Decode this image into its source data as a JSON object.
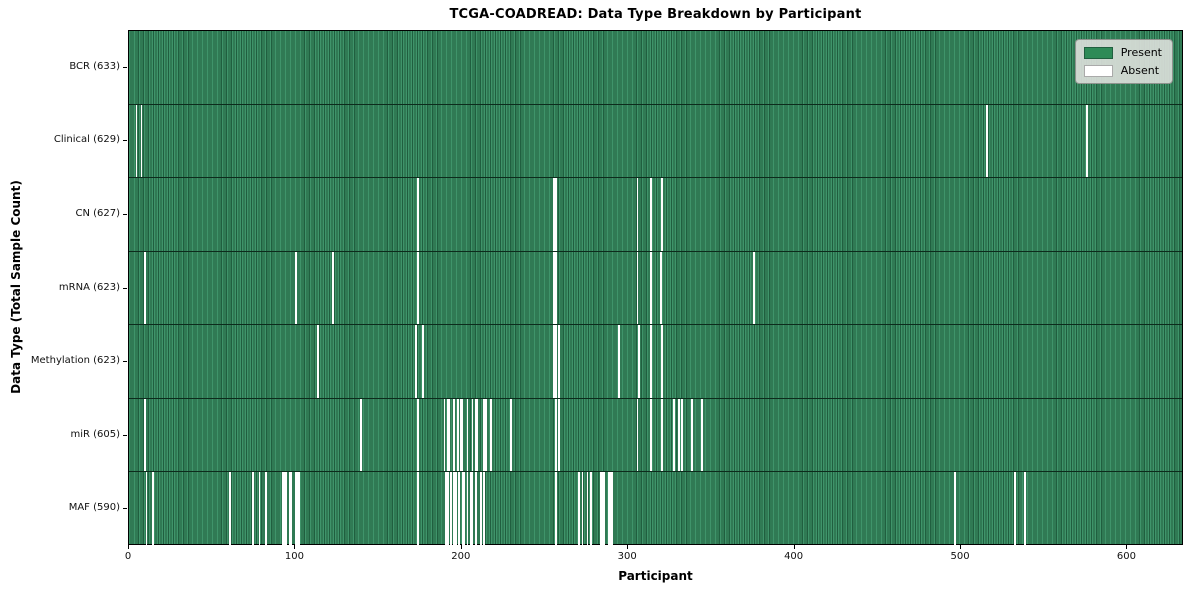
{
  "chart_data": {
    "type": "heatmap",
    "subtype": "presence-absence matrix (one thin bar per participant)",
    "title": "TCGA-COADREAD: Data Type Breakdown by Participant",
    "xlabel": "Participant",
    "ylabel": "Data Type (Total Sample Count)",
    "xlim": [
      0,
      634
    ],
    "x_ticks": [
      0,
      100,
      200,
      300,
      400,
      500,
      600
    ],
    "grid": false,
    "colors": {
      "present_fill": "#2e8b57",
      "present_stripe_light": "#3f946a",
      "present_stripe_dark": "#205f3f",
      "absent_fill": "#ffffff",
      "row_divider": "#0d2b1c",
      "plot_border": "#000000",
      "legend_bg": "#d9ddd9"
    },
    "legend": {
      "position": "upper right",
      "entries": [
        {
          "label": "Present",
          "color": "#2e8b57"
        },
        {
          "label": "Absent",
          "color": "#ffffff"
        }
      ]
    },
    "rows": [
      {
        "label": "BCR (633)",
        "data_type": "BCR",
        "total_samples": 633,
        "absent_participants": []
      },
      {
        "label": "Clinical (629)",
        "data_type": "Clinical",
        "total_samples": 629,
        "absent_participants": [
          4,
          7,
          515,
          575
        ]
      },
      {
        "label": "CN (627)",
        "data_type": "CN",
        "total_samples": 627,
        "absent_participants": [
          173,
          255,
          256,
          305,
          313,
          320
        ]
      },
      {
        "label": "mRNA (623)",
        "data_type": "mRNA",
        "total_samples": 623,
        "absent_participants": [
          9,
          100,
          122,
          173,
          255,
          256,
          305,
          313,
          319,
          375
        ]
      },
      {
        "label": "Methylation (623)",
        "data_type": "Methylation",
        "total_samples": 623,
        "absent_participants": [
          113,
          172,
          176,
          255,
          256,
          258,
          294,
          306,
          313,
          320
        ]
      },
      {
        "label": "miR (605)",
        "data_type": "miR",
        "total_samples": 605,
        "absent_participants": [
          9,
          139,
          173,
          189,
          191,
          192,
          195,
          197,
          199,
          200,
          203,
          206,
          208,
          209,
          213,
          214,
          217,
          229,
          256,
          258,
          305,
          313,
          320,
          327,
          330,
          332,
          338,
          344
        ]
      },
      {
        "label": "MAF (590)",
        "data_type": "MAF",
        "total_samples": 590,
        "absent_participants": [
          10,
          14,
          60,
          74,
          78,
          82,
          92,
          93,
          94,
          96,
          97,
          100,
          101,
          102,
          173,
          190,
          191,
          193,
          195,
          196,
          198,
          200,
          201,
          203,
          205,
          206,
          208,
          211,
          213,
          256,
          270,
          272,
          275,
          277,
          283,
          284,
          285,
          288,
          289,
          290,
          496,
          532,
          538
        ]
      }
    ]
  }
}
